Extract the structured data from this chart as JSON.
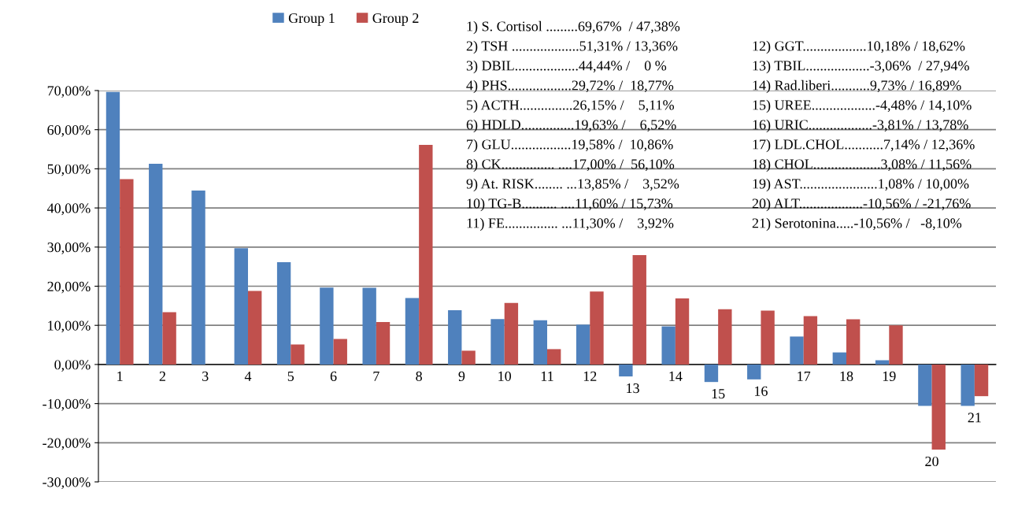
{
  "chart_data": {
    "type": "bar",
    "categories": [
      "1",
      "2",
      "3",
      "4",
      "5",
      "6",
      "7",
      "8",
      "9",
      "10",
      "11",
      "12",
      "13",
      "14",
      "15",
      "16",
      "17",
      "18",
      "19",
      "20",
      "21"
    ],
    "series": [
      {
        "name": "Group 1",
        "color": "#4f81bd",
        "values": [
          69.67,
          51.31,
          44.44,
          29.72,
          26.15,
          19.63,
          19.58,
          17.0,
          13.85,
          11.6,
          11.3,
          10.18,
          -3.06,
          9.73,
          -4.48,
          -3.81,
          7.14,
          3.08,
          1.08,
          -10.56,
          -10.56
        ]
      },
      {
        "name": "Group 2",
        "color": "#c0504d",
        "values": [
          47.38,
          13.36,
          0,
          18.77,
          5.11,
          6.52,
          10.86,
          56.1,
          3.52,
          15.73,
          3.92,
          18.62,
          27.94,
          16.89,
          14.1,
          13.78,
          12.36,
          11.56,
          10.0,
          -21.76,
          -8.1
        ]
      }
    ],
    "ylim": [
      -30,
      70
    ],
    "yticks": [
      {
        "value": -30,
        "label": "-30,00%"
      },
      {
        "value": -20,
        "label": "-20,00%"
      },
      {
        "value": -10,
        "label": "-10,00%"
      },
      {
        "value": 0,
        "label": "0,00%"
      },
      {
        "value": 10,
        "label": "10,00%"
      },
      {
        "value": 20,
        "label": "20,00%"
      },
      {
        "value": 30,
        "label": "30,00%"
      },
      {
        "value": 40,
        "label": "40,00%"
      },
      {
        "value": 50,
        "label": "50,00%"
      },
      {
        "value": 60,
        "label": "60,00%"
      },
      {
        "value": 70,
        "label": "70,00%"
      }
    ],
    "grid": "y",
    "legend": "top",
    "annotations": [
      "1) S. Cortisol .........69,67%  / 47,38%",
      "2) TSH ...................51,31% / 13,36%",
      "3) DBIL..................44,44% /    0 %",
      "4) PHS..................29,72% /  18,77%",
      "5) ACTH...............26,15% /    5,11%",
      "6) HDLD...............19,63% /    6,52%",
      "7) GLU.................19,58% /  10,86%",
      "8) CK............... ....17,00% /  56,10%",
      "9) At. RISK........ ...13,85% /    3,52%",
      "10) TG-B.......... ....11,60% / 15,73%",
      "11) FE............... ...11,30% /    3,92%",
      "12) GGT..................10,18% / 18,62%",
      "13) TBIL..................-3,06%  / 27,94%",
      "14) Rad.liberi...........9,73% / 16,89%",
      "15) UREE..................-4,48% / 14,10%",
      "16) URIC..................-3,81% / 13,78%",
      "17) LDL.CHOL...........7,14% / 12,36%",
      "18) CHOL...................3,08% / 11,56%",
      "19) AST......................1,08% / 10,00%",
      "20) ALT..................-10,56% / -21,76%",
      "21) Serotonina.....-10,56% /   -8,10%"
    ]
  }
}
